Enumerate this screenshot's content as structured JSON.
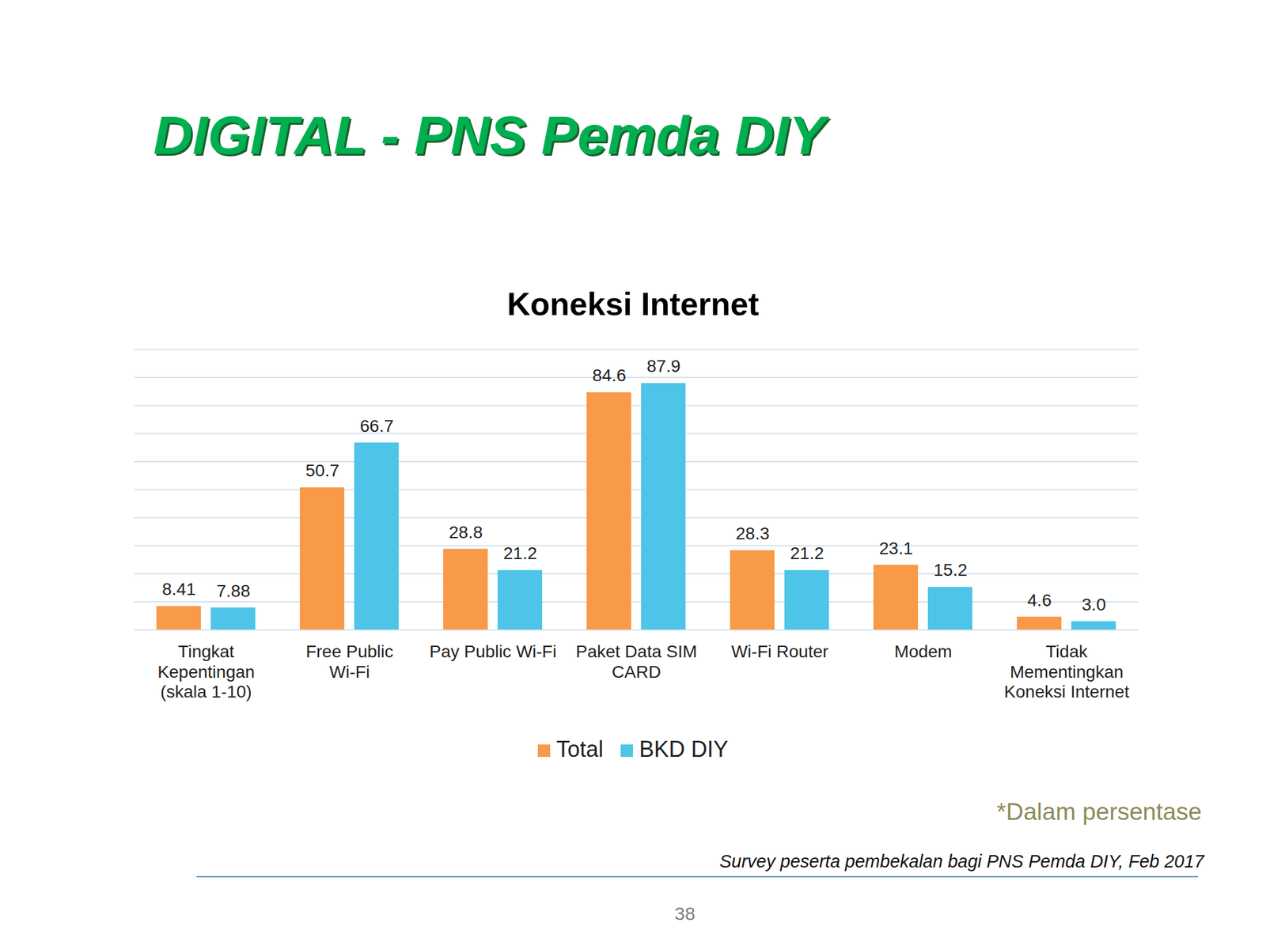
{
  "slide": {
    "title": "DIGITAL - PNS Pemda DIY",
    "note": "*Dalam persentase",
    "source": "Survey peserta pembekalan bagi PNS Pemda DIY, Feb 2017",
    "page_number": 38
  },
  "chart_data": {
    "type": "bar",
    "title": "Koneksi Internet",
    "categories": [
      "Tingkat Kepentingan (skala 1-10)",
      "Free Public Wi-Fi",
      "Pay Public Wi-Fi",
      "Paket Data SIM CARD",
      "Wi-Fi Router",
      "Modem",
      "Tidak Mementingkan Koneksi Internet"
    ],
    "series": [
      {
        "name": "Total",
        "color": "#f99a48",
        "values": [
          8.41,
          50.7,
          28.8,
          84.6,
          28.3,
          23.1,
          4.6
        ],
        "value_labels": [
          "8.41",
          "50.7",
          "28.8",
          "84.6",
          "28.3",
          "23.1",
          "4.6"
        ]
      },
      {
        "name": "BKD DIY",
        "color": "#4ec5e8",
        "values": [
          7.88,
          66.7,
          21.2,
          87.9,
          21.2,
          15.2,
          3.0
        ],
        "value_labels": [
          "7.88",
          "66.7",
          "21.2",
          "87.9",
          "21.2",
          "15.2",
          "3.0"
        ]
      }
    ],
    "ylim": [
      0,
      100
    ],
    "yticks": [
      0,
      10,
      20,
      30,
      40,
      50,
      60,
      70,
      80,
      90,
      100
    ],
    "grid": true,
    "legend": "bottom",
    "data_labels": true,
    "tick_labels": "x"
  }
}
